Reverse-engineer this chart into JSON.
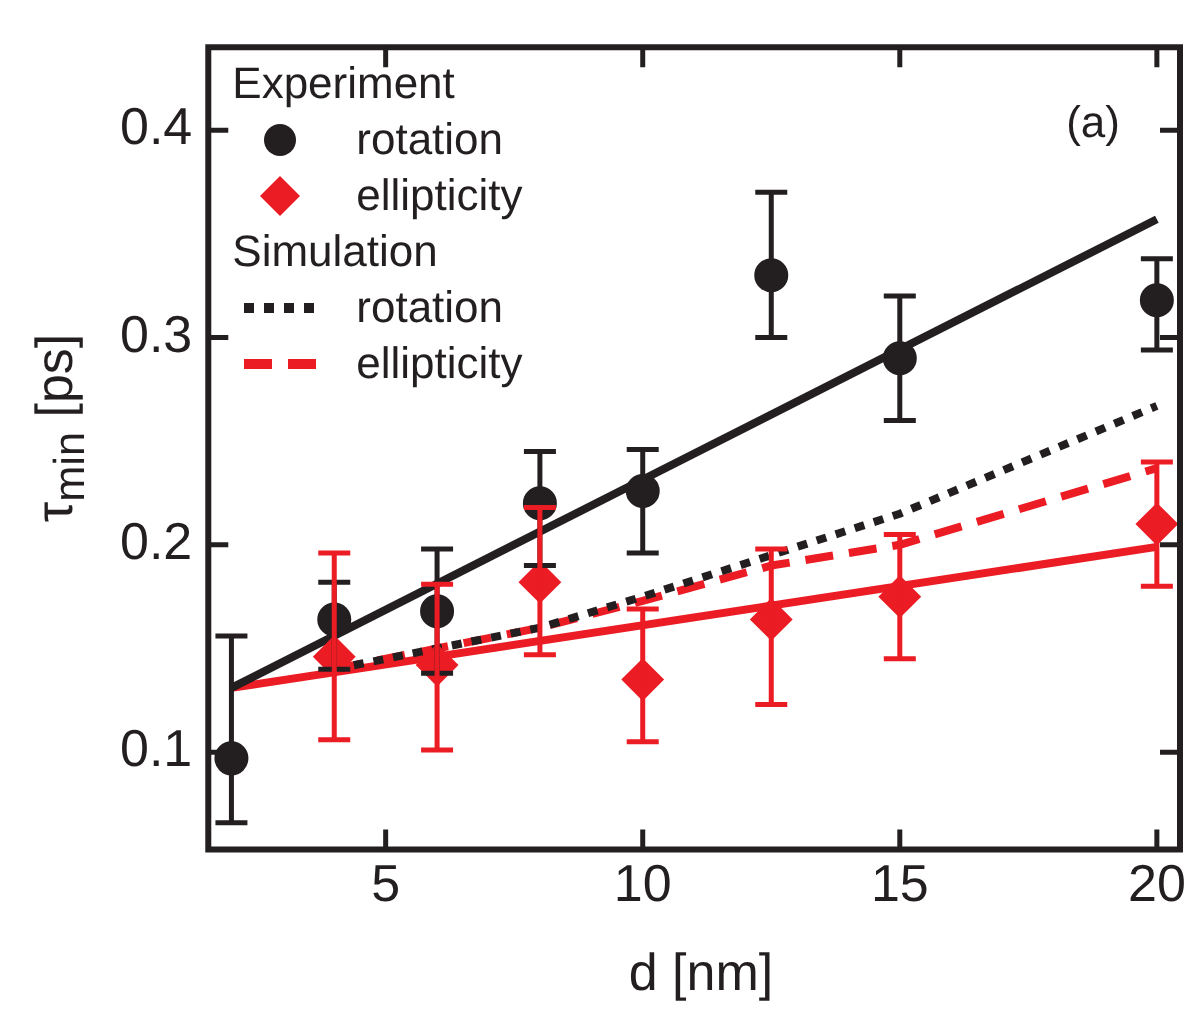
{
  "chart_data": {
    "type": "scatter",
    "xlabel": "d [nm]",
    "ylabel": "τ$_{min}$ [ps]",
    "annotations": [
      "Experiment",
      "Simulation",
      "(a)"
    ],
    "xlim": [
      1.55,
      20.45
    ],
    "ylim": [
      0.053,
      0.44
    ],
    "xticks": [
      5,
      10,
      15,
      20
    ],
    "yticks": [
      0.1,
      0.2,
      0.3,
      0.4
    ],
    "grid": false,
    "legend": "top left",
    "series": [
      {
        "name": "rotation",
        "type": "scatter",
        "marker": "circle",
        "color": "#231f20",
        "x": [
          2,
          4,
          6,
          8,
          10,
          12.5,
          15,
          20
        ],
        "values": [
          0.097,
          0.164,
          0.168,
          0.22,
          0.226,
          0.33,
          0.29,
          0.318
        ],
        "errors": [
          [
            0.066,
            0.156
          ],
          [
            0.14,
            0.182
          ],
          [
            0.138,
            0.198
          ],
          [
            0.19,
            0.245
          ],
          [
            0.196,
            0.246
          ],
          [
            0.3,
            0.37
          ],
          [
            0.26,
            0.32
          ],
          [
            0.294,
            0.338
          ]
        ]
      },
      {
        "name": "ellipticity",
        "type": "scatter",
        "marker": "diamond",
        "color": "#ec1c24",
        "x": [
          4,
          6,
          8,
          10,
          12.5,
          15,
          20
        ],
        "values": [
          0.146,
          0.142,
          0.182,
          0.135,
          0.164,
          0.175,
          0.21
        ],
        "errors": [
          [
            0.106,
            0.196
          ],
          [
            0.101,
            0.181
          ],
          [
            0.147,
            0.218
          ],
          [
            0.105,
            0.169
          ],
          [
            0.123,
            0.198
          ],
          [
            0.145,
            0.205
          ],
          [
            0.18,
            0.24
          ]
        ]
      },
      {
        "name": "rotation",
        "type": "line",
        "line_style": "dotted",
        "color": "#231f20",
        "x": [
          4,
          8,
          10,
          12.5,
          15,
          20
        ],
        "values": [
          0.14,
          0.16,
          0.175,
          0.195,
          0.215,
          0.267
        ]
      },
      {
        "name": "ellipticity",
        "type": "line",
        "line_style": "dashed",
        "color": "#ec1c24",
        "x": [
          4,
          8,
          10,
          12.5,
          15,
          20
        ],
        "values": [
          0.14,
          0.16,
          0.173,
          0.19,
          0.2,
          0.237
        ]
      },
      {
        "type": "line",
        "line_style": "solid",
        "color": "#231f20",
        "x": [
          2,
          20
        ],
        "values": [
          0.131,
          0.357
        ]
      },
      {
        "type": "line",
        "line_style": "solid",
        "color": "#ec1c24",
        "x": [
          2,
          20
        ],
        "values": [
          0.131,
          0.199
        ]
      }
    ]
  }
}
